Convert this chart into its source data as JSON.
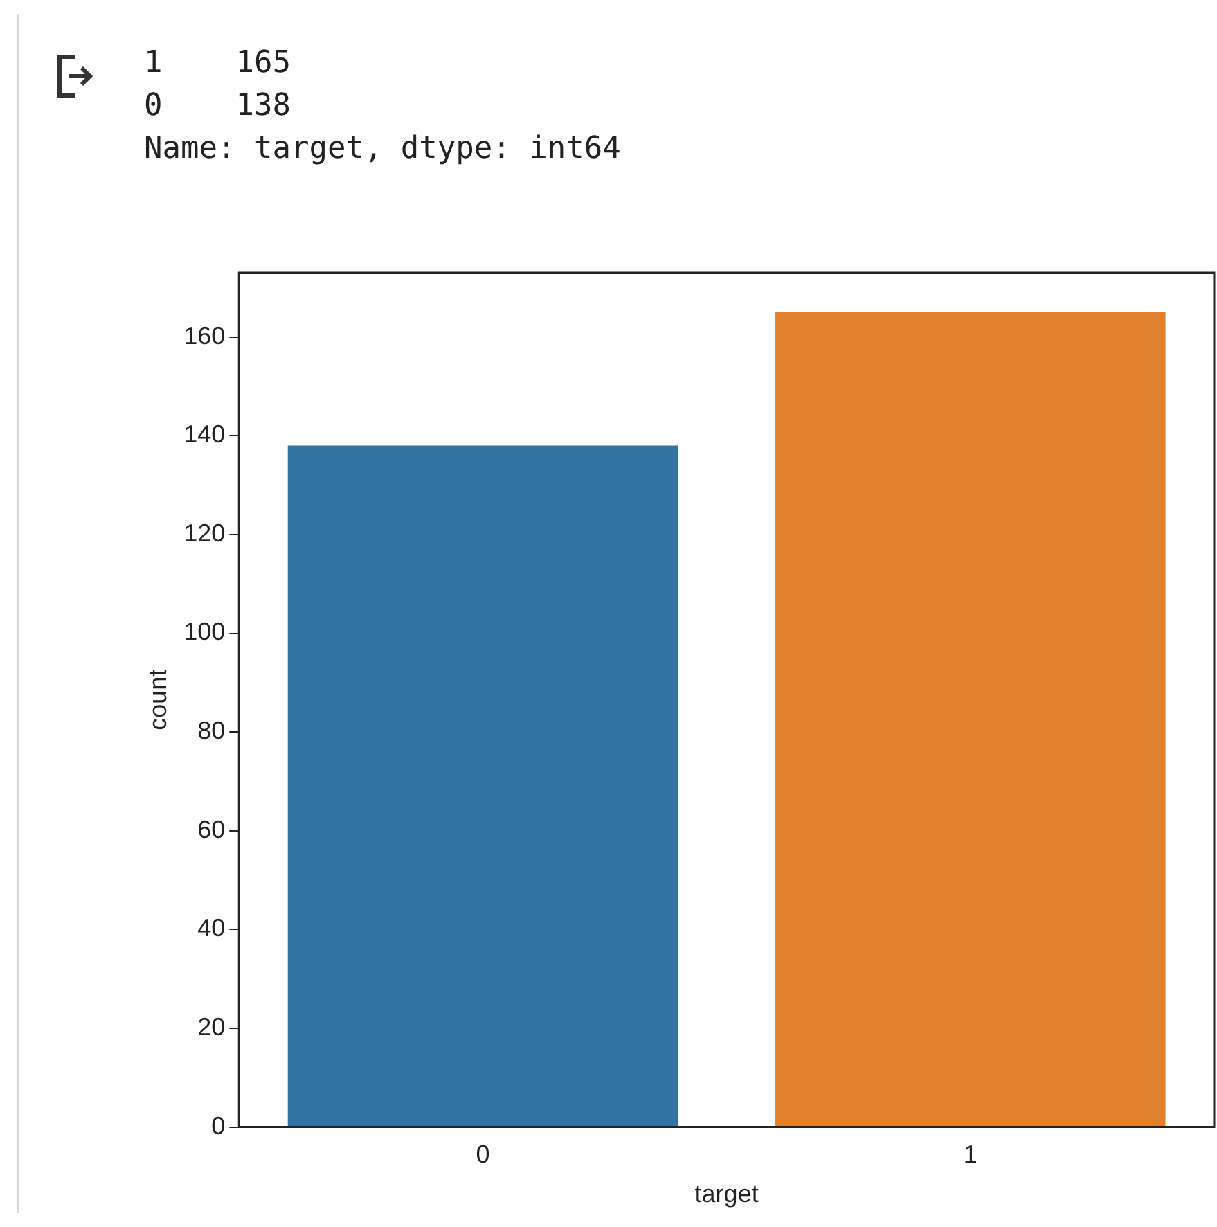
{
  "chart_data": {
    "type": "bar",
    "xlabel": "target",
    "ylabel": "count",
    "categories": [
      "0",
      "1"
    ],
    "values": [
      138,
      165
    ],
    "colors": [
      "#3274a1",
      "#e1812c"
    ],
    "ylim": [
      0,
      173
    ],
    "yticks": [
      0,
      20,
      40,
      60,
      80,
      100,
      120,
      140,
      160
    ],
    "annotations": [
      "1    165",
      "0    138",
      "Name: target, dtype: int64"
    ]
  }
}
